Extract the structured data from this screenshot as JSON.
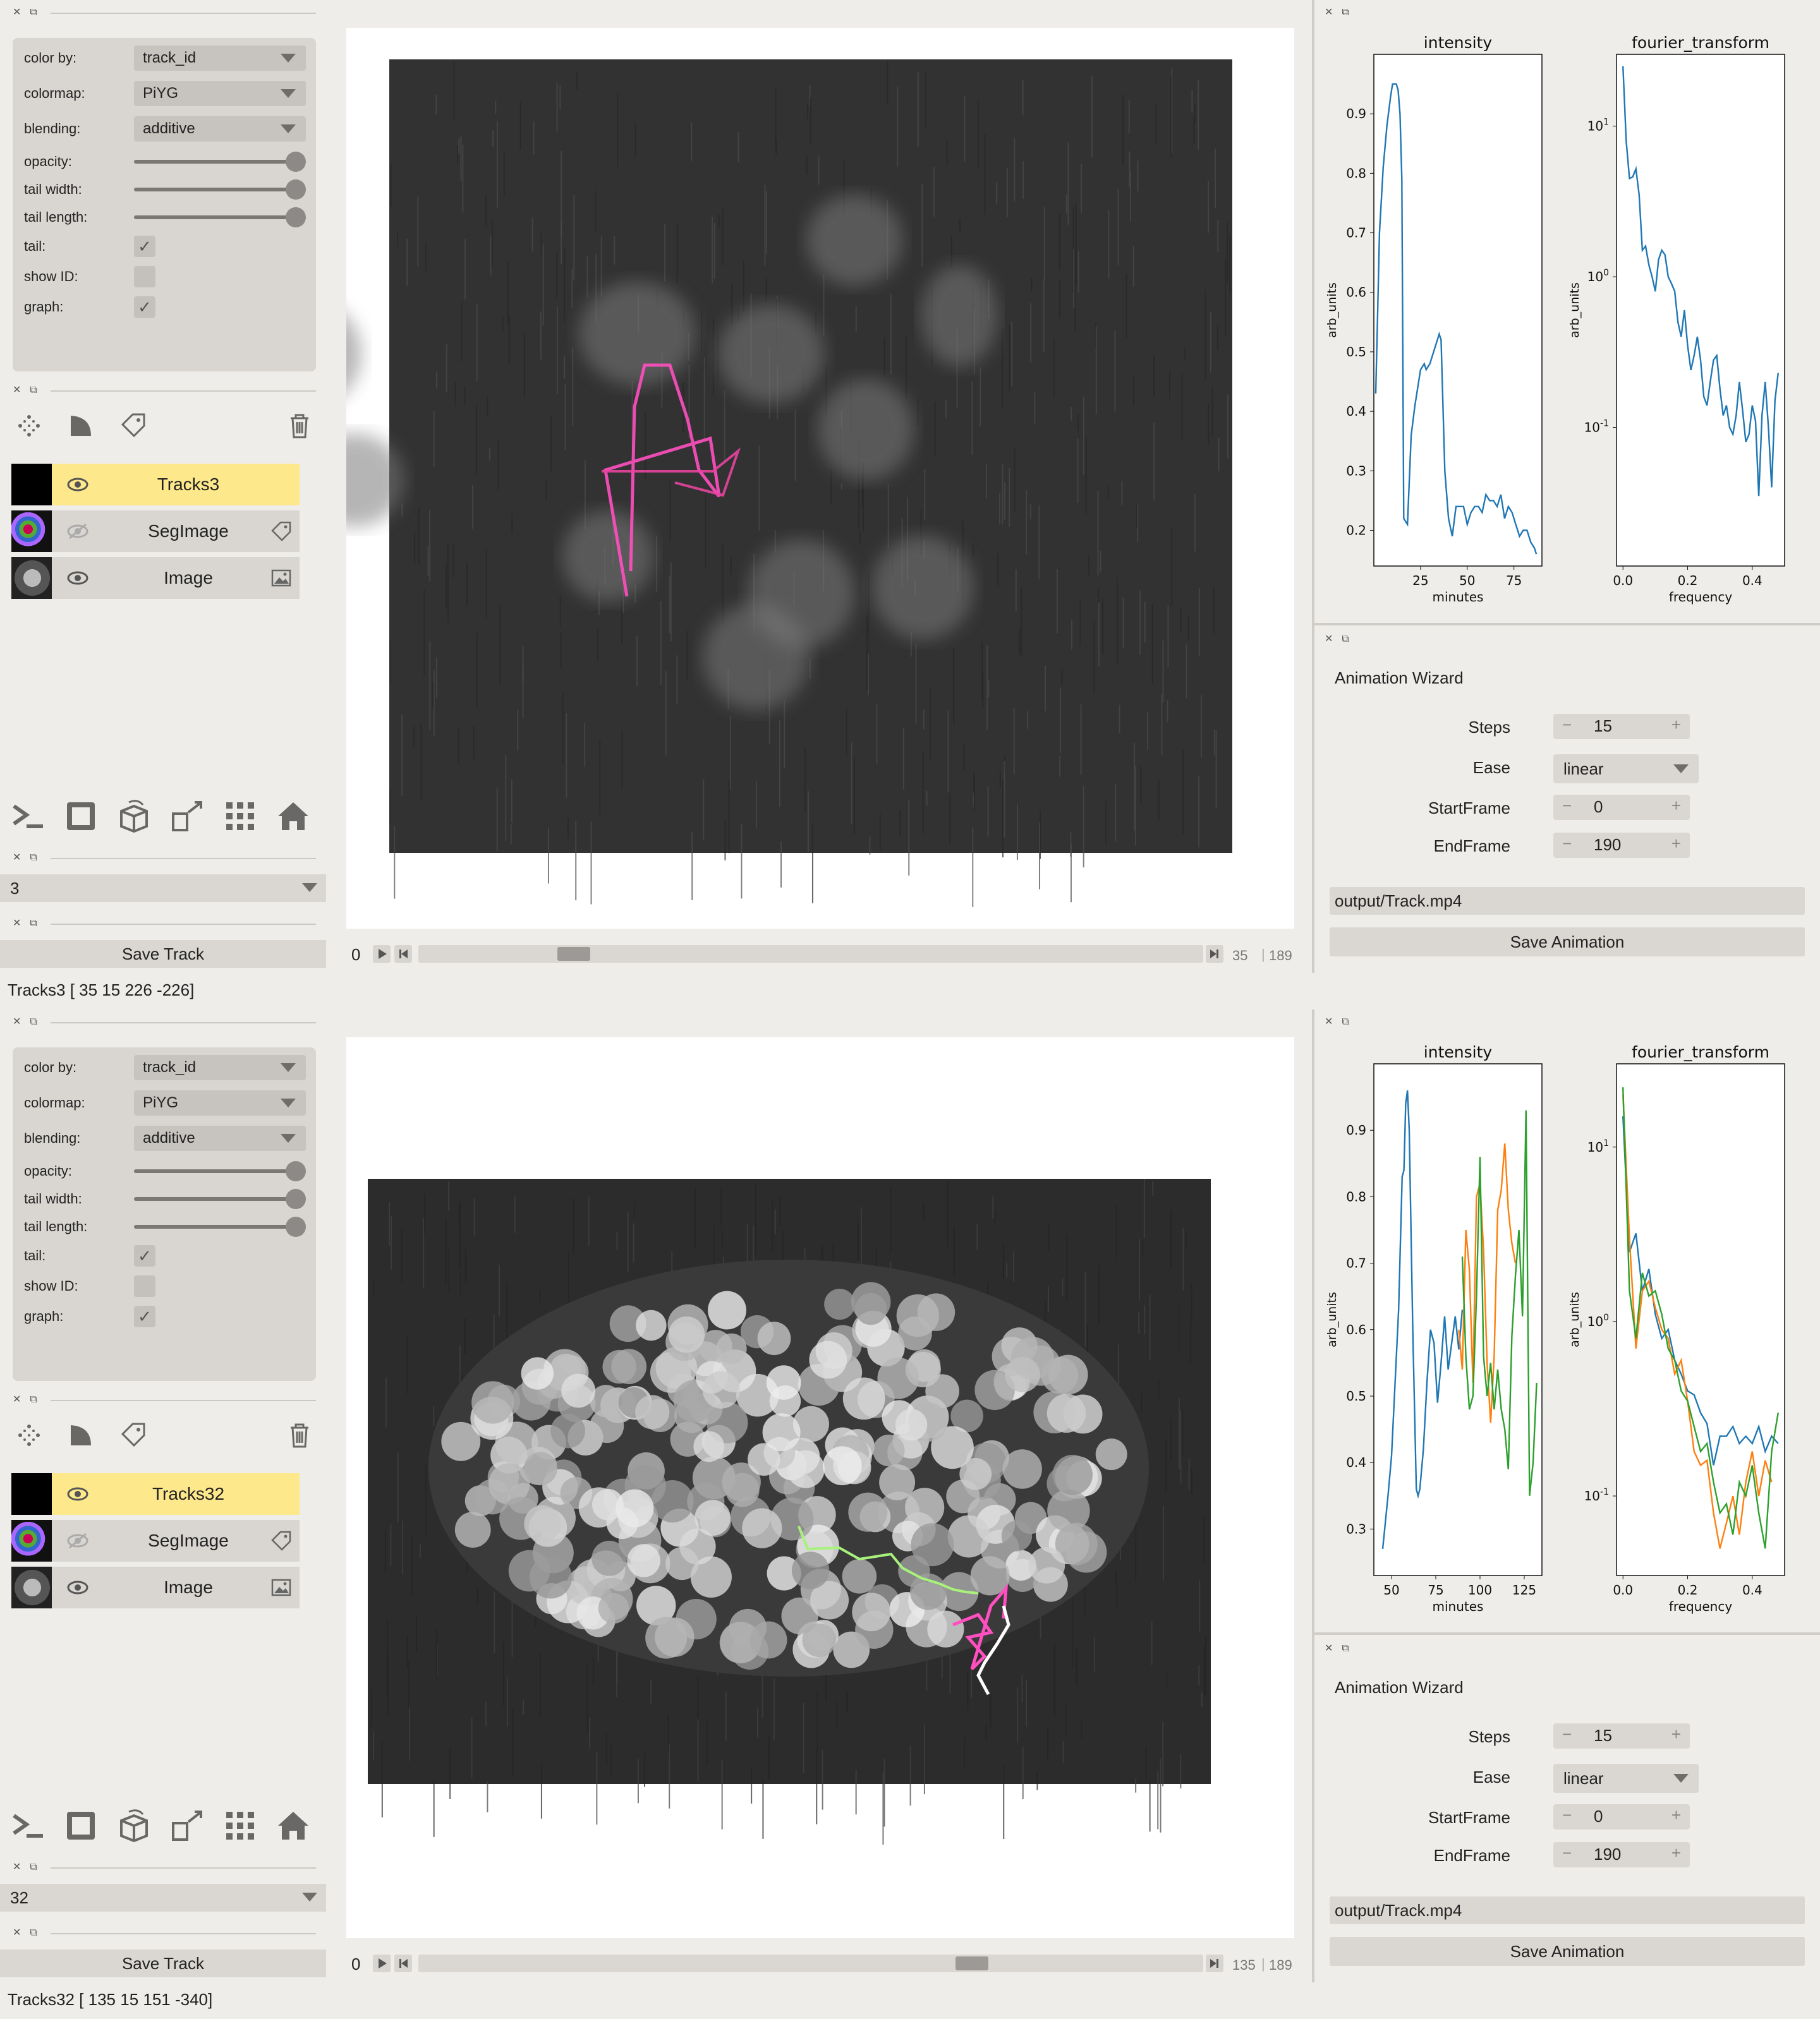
{
  "instances": [
    {
      "id": "top",
      "controls": {
        "color_by_label": "color by:",
        "color_by_value": "track_id",
        "colormap_label": "colormap:",
        "colormap_value": "PiYG",
        "blending_label": "blending:",
        "blending_value": "additive",
        "opacity_label": "opacity:",
        "tail_width_label": "tail width:",
        "tail_length_label": "tail length:",
        "tail_label": "tail:",
        "show_id_label": "show ID:",
        "graph_label": "graph:"
      },
      "layers": [
        "Tracks3",
        "SegImage",
        "Image"
      ],
      "track_select": "3",
      "save_track": "Save Track",
      "frame_start": "0",
      "frame_current": "35",
      "frame_max": "189",
      "slider_fraction": 0.185,
      "status": "Tracks3 [  35   15  226 -226]",
      "charts": [
        {
          "title": "intensity",
          "xlabel": "minutes",
          "ylabel": "arb_units",
          "xticks": [
            "25",
            "50",
            "75"
          ],
          "yticks": [
            "0.9",
            "0.8",
            "0.7",
            "0.6",
            "0.5",
            "0.4",
            "0.3",
            "0.2"
          ]
        },
        {
          "title": "fourier_transform",
          "xlabel": "frequency",
          "ylabel": "arb_units",
          "xticks": [
            "0.0",
            "0.2",
            "0.4"
          ],
          "yticks": [
            "10^1",
            "10^0",
            "10^-1"
          ]
        }
      ],
      "wizard": {
        "title": "Animation Wizard",
        "steps_label": "Steps",
        "steps": "15",
        "ease_label": "Ease",
        "ease": "linear",
        "start_label": "StartFrame",
        "start": "0",
        "end_label": "EndFrame",
        "end": "190",
        "output": "output/Track.mp4",
        "save": "Save Animation"
      }
    },
    {
      "id": "bottom",
      "controls": {
        "color_by_label": "color by:",
        "color_by_value": "track_id",
        "colormap_label": "colormap:",
        "colormap_value": "PiYG",
        "blending_label": "blending:",
        "blending_value": "additive",
        "opacity_label": "opacity:",
        "tail_width_label": "tail width:",
        "tail_length_label": "tail length:",
        "tail_label": "tail:",
        "show_id_label": "show ID:",
        "graph_label": "graph:"
      },
      "layers": [
        "Tracks32",
        "SegImage",
        "Image"
      ],
      "track_select": "32",
      "save_track": "Save Track",
      "frame_start": "0",
      "frame_current": "135",
      "frame_max": "189",
      "slider_fraction": 0.714,
      "status": "Tracks32 [ 135   15  151 -340]",
      "charts": [
        {
          "title": "intensity",
          "xlabel": "minutes",
          "ylabel": "arb_units",
          "xticks": [
            "50",
            "75",
            "100",
            "125"
          ],
          "yticks": [
            "0.9",
            "0.8",
            "0.7",
            "0.6",
            "0.5",
            "0.4",
            "0.3"
          ]
        },
        {
          "title": "fourier_transform",
          "xlabel": "frequency",
          "ylabel": "arb_units",
          "xticks": [
            "0.0",
            "0.2",
            "0.4"
          ],
          "yticks": [
            "10^1",
            "10^0",
            "10^-1"
          ]
        }
      ],
      "wizard": {
        "title": "Animation Wizard",
        "steps_label": "Steps",
        "steps": "15",
        "ease_label": "Ease",
        "ease": "linear",
        "start_label": "StartFrame",
        "start": "0",
        "end_label": "EndFrame",
        "end": "190",
        "output": "output/Track.mp4",
        "save": "Save Animation"
      }
    }
  ],
  "chart_data": [
    {
      "type": "line",
      "title": "intensity",
      "xlabel": "minutes",
      "ylabel": "arb_units",
      "xlim": [
        0,
        90
      ],
      "ylim": [
        0.14,
        1.0
      ],
      "series": [
        {
          "color": "#1f77b4",
          "x": [
            1,
            2,
            3,
            5,
            7,
            9,
            10,
            12,
            13,
            14,
            15,
            16,
            18,
            20,
            22,
            25,
            27,
            28,
            30,
            32,
            34,
            35,
            36,
            38,
            40,
            42,
            44,
            46,
            48,
            50,
            52,
            54,
            56,
            58,
            60,
            62,
            64,
            66,
            68,
            70,
            72,
            74,
            76,
            78,
            80,
            82,
            84,
            86,
            87
          ],
          "y": [
            0.43,
            0.56,
            0.7,
            0.81,
            0.88,
            0.93,
            0.95,
            0.95,
            0.94,
            0.9,
            0.79,
            0.22,
            0.21,
            0.36,
            0.41,
            0.47,
            0.48,
            0.47,
            0.48,
            0.5,
            0.52,
            0.53,
            0.52,
            0.3,
            0.22,
            0.19,
            0.24,
            0.24,
            0.24,
            0.21,
            0.23,
            0.24,
            0.24,
            0.23,
            0.26,
            0.25,
            0.25,
            0.24,
            0.26,
            0.22,
            0.24,
            0.23,
            0.21,
            0.19,
            0.2,
            0.2,
            0.18,
            0.17,
            0.16
          ]
        }
      ]
    },
    {
      "type": "line",
      "title": "fourier_transform",
      "xlabel": "frequency",
      "ylabel": "arb_units",
      "xlim": [
        -0.02,
        0.5
      ],
      "ylim": [
        0.012,
        30
      ],
      "yscale": "log",
      "series": [
        {
          "color": "#1f77b4",
          "x": [
            0.0,
            0.01,
            0.02,
            0.03,
            0.04,
            0.05,
            0.06,
            0.07,
            0.08,
            0.09,
            0.1,
            0.11,
            0.12,
            0.13,
            0.14,
            0.15,
            0.16,
            0.17,
            0.18,
            0.19,
            0.2,
            0.21,
            0.22,
            0.23,
            0.24,
            0.25,
            0.26,
            0.27,
            0.28,
            0.29,
            0.3,
            0.31,
            0.32,
            0.33,
            0.34,
            0.35,
            0.36,
            0.37,
            0.38,
            0.39,
            0.4,
            0.41,
            0.42,
            0.43,
            0.44,
            0.45,
            0.46,
            0.47,
            0.48
          ],
          "y": [
            25,
            8,
            4.5,
            4.6,
            5.2,
            3.5,
            1.5,
            1.6,
            1.2,
            1.0,
            0.8,
            1.3,
            1.5,
            1.4,
            1.0,
            0.9,
            0.8,
            0.5,
            0.4,
            0.6,
            0.35,
            0.24,
            0.3,
            0.4,
            0.28,
            0.16,
            0.14,
            0.2,
            0.28,
            0.3,
            0.18,
            0.12,
            0.14,
            0.1,
            0.09,
            0.12,
            0.2,
            0.13,
            0.08,
            0.09,
            0.14,
            0.11,
            0.035,
            0.12,
            0.2,
            0.1,
            0.04,
            0.15,
            0.23
          ]
        }
      ]
    },
    {
      "type": "line",
      "title": "intensity",
      "xlabel": "minutes",
      "ylabel": "arb_units",
      "xlim": [
        40,
        135
      ],
      "ylim": [
        0.23,
        1.0
      ],
      "series": [
        {
          "color": "#1f77b4",
          "x": [
            45,
            48,
            50,
            52,
            54,
            56,
            57,
            58,
            59,
            60,
            62,
            64,
            65,
            66,
            68,
            70,
            72,
            74,
            76,
            78,
            80,
            82,
            84,
            86,
            88,
            90
          ],
          "y": [
            0.27,
            0.35,
            0.41,
            0.52,
            0.63,
            0.83,
            0.84,
            0.94,
            0.96,
            0.9,
            0.6,
            0.36,
            0.35,
            0.36,
            0.42,
            0.52,
            0.6,
            0.58,
            0.49,
            0.55,
            0.62,
            0.54,
            0.58,
            0.62,
            0.57,
            0.63
          ]
        },
        {
          "color": "#ff7f0e",
          "x": [
            88,
            90,
            92,
            94,
            96,
            98,
            100,
            102,
            104,
            106,
            108,
            110,
            112,
            114,
            116,
            118,
            120
          ],
          "y": [
            0.6,
            0.54,
            0.75,
            0.69,
            0.52,
            0.8,
            0.82,
            0.72,
            0.55,
            0.46,
            0.56,
            0.78,
            0.81,
            0.88,
            0.78,
            0.73,
            0.7
          ]
        },
        {
          "color": "#2ca02c",
          "x": [
            90,
            92,
            94,
            96,
            98,
            100,
            102,
            104,
            106,
            108,
            110,
            112,
            114,
            116,
            118,
            120,
            122,
            124,
            126,
            128,
            130,
            132
          ],
          "y": [
            0.71,
            0.56,
            0.48,
            0.5,
            0.65,
            0.86,
            0.56,
            0.5,
            0.55,
            0.48,
            0.54,
            0.48,
            0.45,
            0.39,
            0.59,
            0.68,
            0.75,
            0.62,
            0.93,
            0.35,
            0.4,
            0.52
          ]
        }
      ]
    },
    {
      "type": "line",
      "title": "fourier_transform",
      "xlabel": "frequency",
      "ylabel": "arb_units",
      "xlim": [
        -0.02,
        0.5
      ],
      "ylim": [
        0.035,
        30
      ],
      "yscale": "log",
      "series": [
        {
          "color": "#1f77b4",
          "x": [
            0.0,
            0.02,
            0.04,
            0.06,
            0.08,
            0.1,
            0.12,
            0.14,
            0.16,
            0.18,
            0.2,
            0.22,
            0.24,
            0.26,
            0.28,
            0.3,
            0.32,
            0.34,
            0.36,
            0.38,
            0.4,
            0.42,
            0.44,
            0.46,
            0.48
          ],
          "y": [
            15,
            2.5,
            3.2,
            1.5,
            2.0,
            1.1,
            0.8,
            0.9,
            0.6,
            0.5,
            0.4,
            0.38,
            0.3,
            0.26,
            0.15,
            0.22,
            0.22,
            0.25,
            0.2,
            0.22,
            0.2,
            0.25,
            0.18,
            0.22,
            0.2
          ]
        },
        {
          "color": "#ff7f0e",
          "x": [
            0.0,
            0.02,
            0.04,
            0.06,
            0.08,
            0.1,
            0.12,
            0.14,
            0.16,
            0.18,
            0.2,
            0.22,
            0.24,
            0.26,
            0.28,
            0.3,
            0.32,
            0.34,
            0.36,
            0.38,
            0.4,
            0.42,
            0.44,
            0.46
          ],
          "y": [
            20,
            3.0,
            0.7,
            1.5,
            1.7,
            1.2,
            0.9,
            0.8,
            0.5,
            0.6,
            0.35,
            0.18,
            0.15,
            0.16,
            0.08,
            0.05,
            0.07,
            0.1,
            0.06,
            0.12,
            0.18,
            0.1,
            0.16,
            0.12
          ]
        },
        {
          "color": "#2ca02c",
          "x": [
            0.0,
            0.02,
            0.04,
            0.06,
            0.08,
            0.1,
            0.12,
            0.14,
            0.16,
            0.18,
            0.2,
            0.22,
            0.24,
            0.26,
            0.28,
            0.3,
            0.32,
            0.34,
            0.36,
            0.38,
            0.4,
            0.42,
            0.44,
            0.46,
            0.48
          ],
          "y": [
            22,
            1.5,
            0.8,
            1.9,
            1.4,
            1.5,
            1.1,
            0.7,
            0.6,
            0.4,
            0.35,
            0.25,
            0.18,
            0.2,
            0.12,
            0.08,
            0.09,
            0.06,
            0.12,
            0.1,
            0.15,
            0.08,
            0.05,
            0.18,
            0.3
          ]
        }
      ]
    }
  ]
}
